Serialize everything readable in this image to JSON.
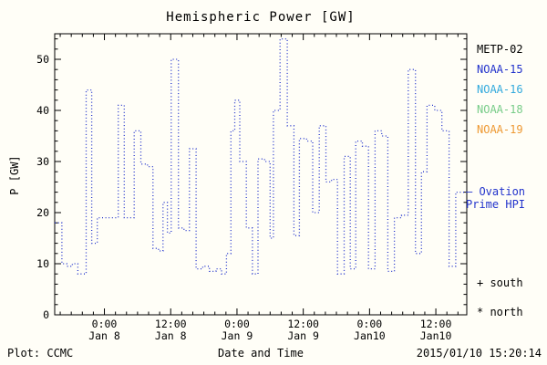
{
  "title": "Hemispheric Power [GW]",
  "footer": {
    "plot_credit": "Plot: CCMC",
    "timestamp": "2015/01/10 15:20:14"
  },
  "legend": {
    "satellites": [
      {
        "label": "METP-02",
        "color": "#000000"
      },
      {
        "label": "NOAA-15",
        "color": "#2233cc"
      },
      {
        "label": "NOAA-16",
        "color": "#33aadd"
      },
      {
        "label": "NOAA-18",
        "color": "#77cc88"
      },
      {
        "label": "NOAA-19",
        "color": "#ee9933"
      }
    ],
    "hpi": {
      "line1": "— Ovation",
      "line2": "Prime HPI",
      "color": "#2233cc",
      "current_value_gw": 24
    },
    "south": "+ south",
    "north": "* north"
  },
  "chart_data": {
    "type": "line",
    "style": "dotted step line (satellite hemispheric power estimates over time)",
    "title": "Hemispheric Power [GW]",
    "xlabel": "Date and Time",
    "ylabel": "P [GW]",
    "line_color": "#2233cc",
    "grid": false,
    "legend_position": "right",
    "ylim": [
      0,
      55
    ],
    "y_ticks": [
      0,
      10,
      20,
      30,
      40,
      50
    ],
    "xlim_hours": [
      0,
      74.6
    ],
    "x_axis_note": "hours from plot start (~2015-01-07 15:00 UT); major ticks every 12 h",
    "x_ticks": [
      {
        "t": 9,
        "time": "0:00",
        "date": "Jan 8"
      },
      {
        "t": 21,
        "time": "12:00",
        "date": "Jan 8"
      },
      {
        "t": 33,
        "time": "0:00",
        "date": "Jan 9"
      },
      {
        "t": 45,
        "time": "12:00",
        "date": "Jan 9"
      },
      {
        "t": 57,
        "time": "0:00",
        "date": "Jan10"
      },
      {
        "t": 69,
        "time": "12:00",
        "date": "Jan10"
      }
    ],
    "points": [
      [
        0,
        18
      ],
      [
        1.3,
        10
      ],
      [
        2.2,
        9.5
      ],
      [
        3.2,
        10
      ],
      [
        4.2,
        8
      ],
      [
        5.7,
        44
      ],
      [
        6.7,
        14
      ],
      [
        7.7,
        19
      ],
      [
        11.5,
        41
      ],
      [
        12.6,
        19
      ],
      [
        14.4,
        36
      ],
      [
        15.6,
        29.5
      ],
      [
        16.8,
        29
      ],
      [
        17.8,
        13
      ],
      [
        18.8,
        12.5
      ],
      [
        19.6,
        22
      ],
      [
        20.4,
        16
      ],
      [
        21.1,
        50
      ],
      [
        22.4,
        17
      ],
      [
        23.4,
        16.5
      ],
      [
        24.4,
        32.5
      ],
      [
        25.6,
        9
      ],
      [
        26.8,
        9.5
      ],
      [
        28.0,
        8.5
      ],
      [
        29.2,
        9
      ],
      [
        30.2,
        8
      ],
      [
        31.1,
        12
      ],
      [
        31.9,
        36
      ],
      [
        32.6,
        42
      ],
      [
        33.5,
        30
      ],
      [
        34.7,
        17
      ],
      [
        35.8,
        8
      ],
      [
        36.8,
        30.5
      ],
      [
        38.0,
        30
      ],
      [
        39.0,
        15
      ],
      [
        39.6,
        40
      ],
      [
        40.8,
        54
      ],
      [
        42.1,
        37
      ],
      [
        43.3,
        15.5
      ],
      [
        44.3,
        34.5
      ],
      [
        45.6,
        34
      ],
      [
        46.7,
        20
      ],
      [
        47.9,
        37
      ],
      [
        49.1,
        26
      ],
      [
        50.1,
        26.5
      ],
      [
        51.2,
        8
      ],
      [
        52.4,
        31
      ],
      [
        53.5,
        9
      ],
      [
        54.5,
        34
      ],
      [
        55.7,
        33
      ],
      [
        56.8,
        9
      ],
      [
        58.0,
        36
      ],
      [
        59.2,
        35
      ],
      [
        60.3,
        8.5
      ],
      [
        61.5,
        19
      ],
      [
        62.8,
        19.5
      ],
      [
        64.0,
        48
      ],
      [
        65.3,
        12
      ],
      [
        66.4,
        28
      ],
      [
        67.4,
        41
      ],
      [
        68.8,
        40
      ],
      [
        70.1,
        36
      ],
      [
        71.4,
        9.5
      ],
      [
        72.6,
        24
      ],
      [
        74.6,
        24
      ]
    ]
  }
}
